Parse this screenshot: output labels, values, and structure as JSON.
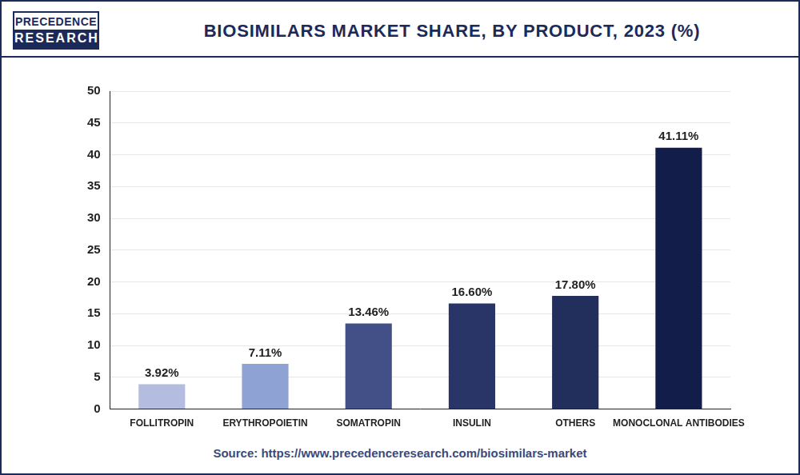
{
  "logo": [
    "PRECEDENCE",
    "RESEARCH"
  ],
  "chart_data": {
    "type": "bar",
    "title": "BIOSIMILARS MARKET SHARE, BY PRODUCT, 2023 (%)",
    "source": "Source: https://www.precedenceresearch.com/biosimilars-market",
    "categories": [
      "FOLLITROPIN",
      "ERYTHROPOIETIN",
      "SOMATROPIN",
      "INSULIN",
      "OTHERS",
      "MONOCLONAL ANTIBODIES"
    ],
    "values": [
      3.92,
      7.11,
      13.46,
      16.6,
      17.8,
      41.11
    ],
    "value_labels": [
      "3.92%",
      "7.11%",
      "13.46%",
      "16.60%",
      "17.80%",
      "41.11%"
    ],
    "colors": [
      "#b4bde0",
      "#8fa2d4",
      "#435088",
      "#283566",
      "#222e5c",
      "#131d4a"
    ],
    "ylim": [
      0,
      50
    ],
    "yticks": [
      0,
      5,
      10,
      15,
      20,
      25,
      30,
      35,
      40,
      45,
      50
    ],
    "grid": true,
    "data_labels": true
  }
}
